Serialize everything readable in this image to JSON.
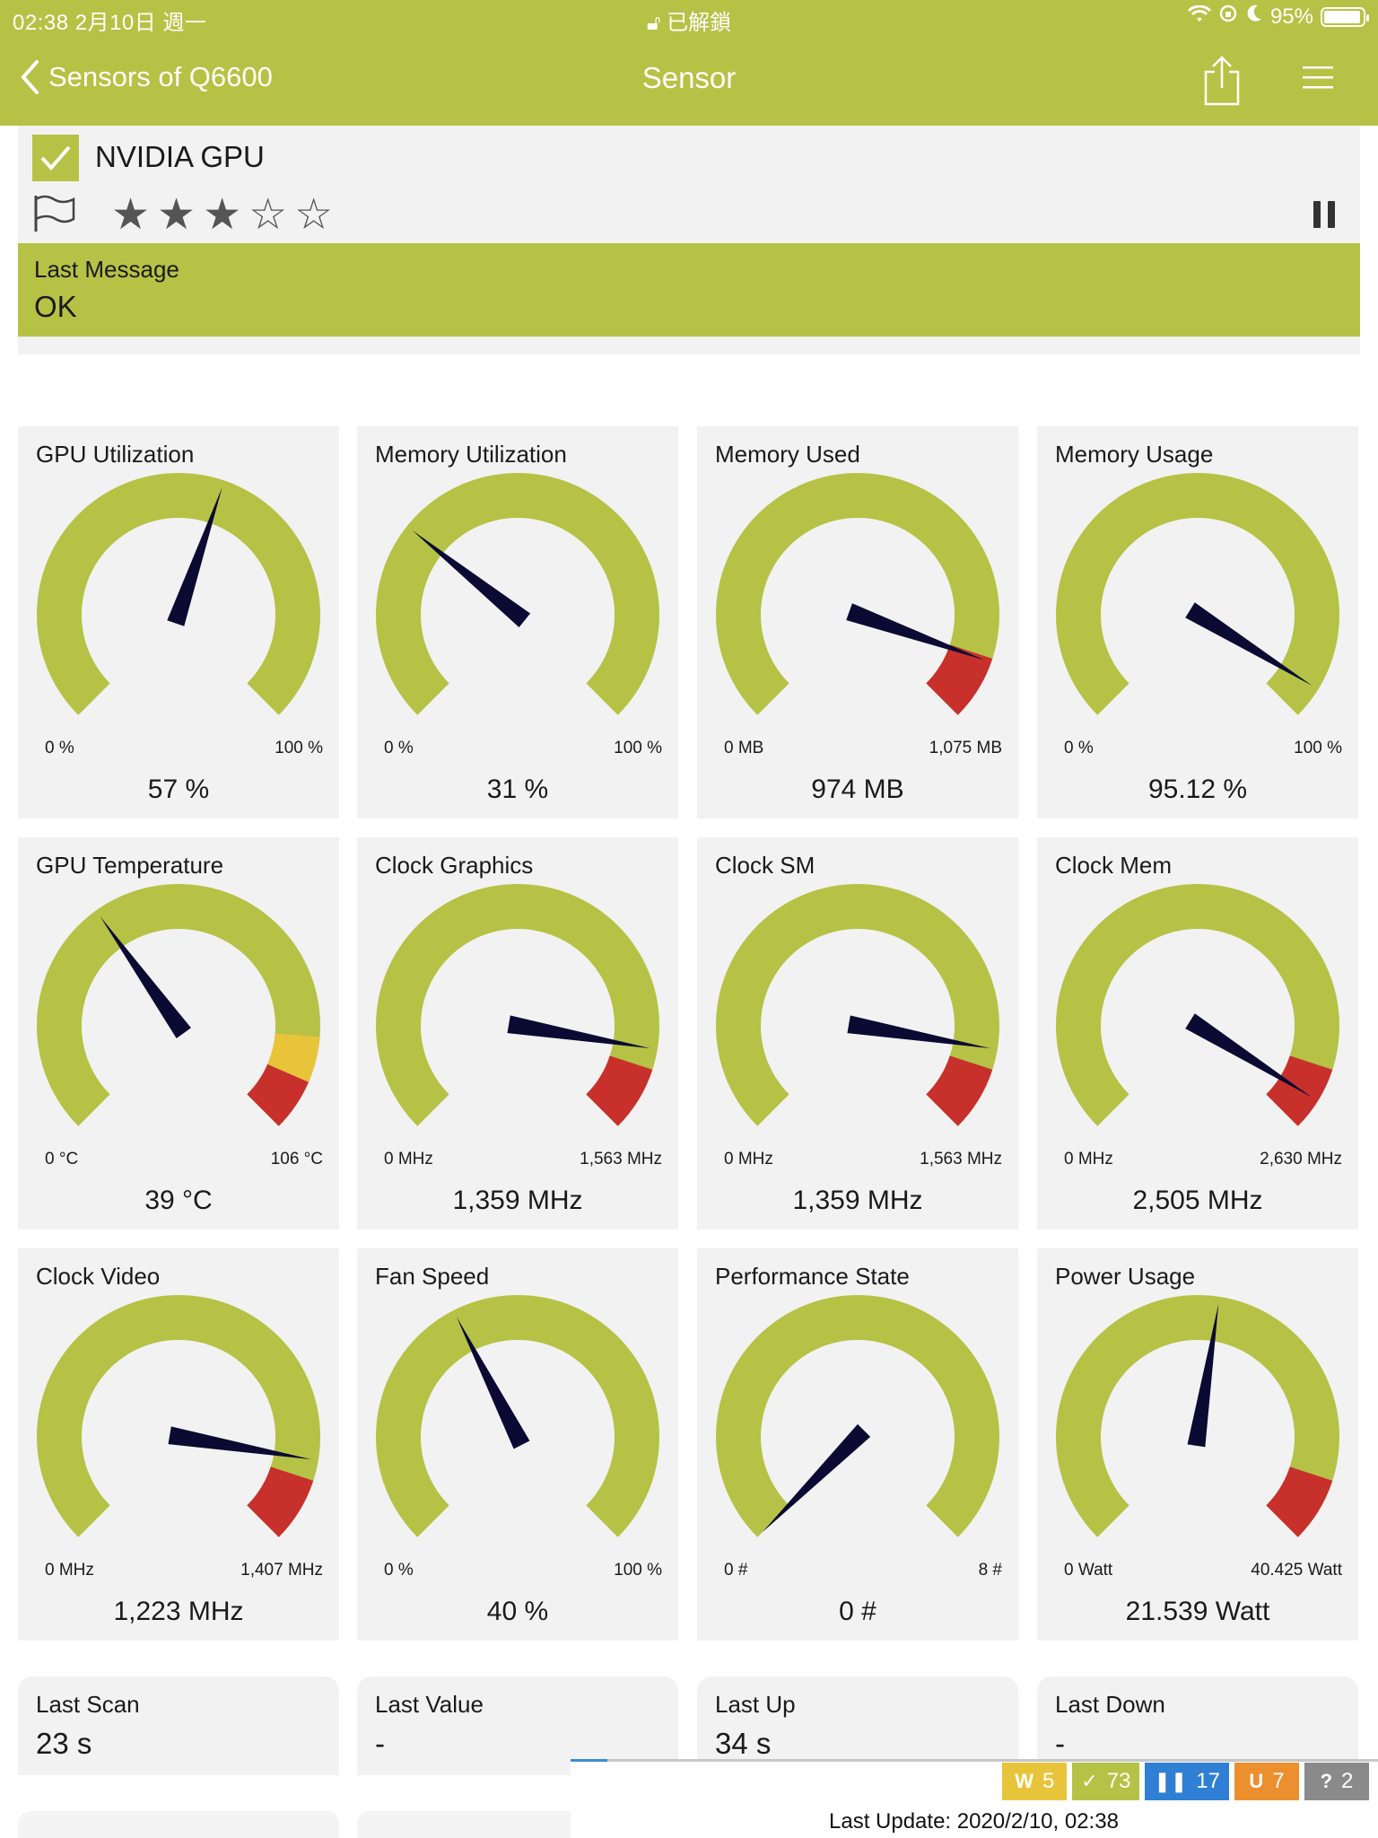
{
  "status_bar": {
    "time_date": "02:38   2月10日 週一",
    "lock_text": "已解鎖",
    "battery": "95%",
    "battery_level": 0.95
  },
  "nav": {
    "back_label": "Sensors of Q6600",
    "title": "Sensor"
  },
  "header": {
    "device_name": "NVIDIA GPU",
    "priority_stars": 3,
    "stars_total": 5,
    "last_message_label": "Last Message",
    "last_message_value": "OK"
  },
  "colors": {
    "accent": "#b5c245",
    "needle": "#0a0a33",
    "danger": "#c8302c",
    "warning": "#e8c43a",
    "card": "#f2f2f2"
  },
  "gauges": [
    {
      "title": "GPU Utilization",
      "min": "0 %",
      "max": "100 %",
      "value": "57 %",
      "fraction": 0.57,
      "warn": null,
      "danger": null
    },
    {
      "title": "Memory Utilization",
      "min": "0 %",
      "max": "100 %",
      "value": "31 %",
      "fraction": 0.31,
      "warn": null,
      "danger": null
    },
    {
      "title": "Memory Used",
      "min": "0 MB",
      "max": "1,075 MB",
      "value": "974 MB",
      "fraction": 0.906,
      "warn": null,
      "danger": 0.9
    },
    {
      "title": "Memory Usage",
      "min": "0 %",
      "max": "100 %",
      "value": "95.12 %",
      "fraction": 0.951,
      "warn": null,
      "danger": null
    },
    {
      "title": "GPU Temperature",
      "min": "0 °C",
      "max": "106 °C",
      "value": "39 °C",
      "fraction": 0.368,
      "warn": 0.85,
      "danger": 0.92
    },
    {
      "title": "Clock Graphics",
      "min": "0 MHz",
      "max": "1,563 MHz",
      "value": "1,359 MHz",
      "fraction": 0.869,
      "warn": null,
      "danger": 0.9
    },
    {
      "title": "Clock SM",
      "min": "0 MHz",
      "max": "1,563 MHz",
      "value": "1,359 MHz",
      "fraction": 0.869,
      "warn": null,
      "danger": 0.9
    },
    {
      "title": "Clock Mem",
      "min": "0 MHz",
      "max": "2,630 MHz",
      "value": "2,505 MHz",
      "fraction": 0.952,
      "warn": null,
      "danger": 0.9
    },
    {
      "title": "Clock Video",
      "min": "0 MHz",
      "max": "1,407 MHz",
      "value": "1,223 MHz",
      "fraction": 0.869,
      "warn": null,
      "danger": 0.9
    },
    {
      "title": "Fan Speed",
      "min": "0 %",
      "max": "100 %",
      "value": "40 %",
      "fraction": 0.4,
      "warn": null,
      "danger": null
    },
    {
      "title": "Performance State",
      "min": "0 #",
      "max": "8 #",
      "value": "0 #",
      "fraction": 0.0,
      "warn": null,
      "danger": null
    },
    {
      "title": "Power Usage",
      "min": "0 Watt",
      "max": "40.425 Watt",
      "value": "21.539 Watt",
      "fraction": 0.533,
      "warn": null,
      "danger": 0.9
    }
  ],
  "info": [
    {
      "label": "Last Scan",
      "value": "23 s"
    },
    {
      "label": "Last Value",
      "value": "-"
    },
    {
      "label": "Last Up",
      "value": "34 s"
    },
    {
      "label": "Last Down",
      "value": "-"
    }
  ],
  "footer": {
    "progress": 0.045,
    "badges": [
      {
        "glyph": "W",
        "count": "5",
        "color": "#e8c43a"
      },
      {
        "glyph": "✓",
        "count": "73",
        "color": "#b5c245"
      },
      {
        "glyph": "❚❚",
        "count": "17",
        "color": "#2f7fd4"
      },
      {
        "glyph": "U",
        "count": "7",
        "color": "#ec8f2f"
      },
      {
        "glyph": "?",
        "count": "2",
        "color": "#8a8a8a"
      }
    ],
    "last_update": "Last Update: 2020/2/10, 02:38"
  }
}
